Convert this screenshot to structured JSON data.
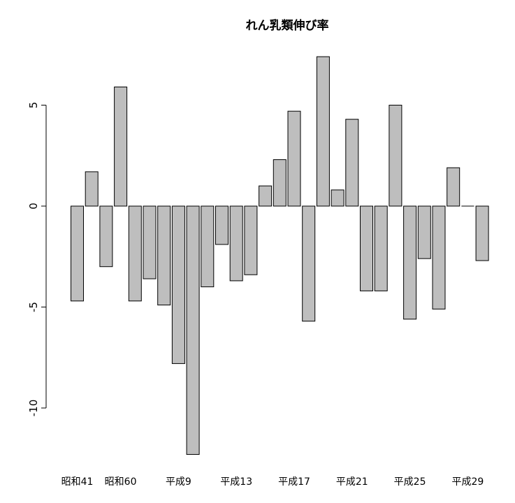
{
  "chart_data": {
    "type": "bar",
    "title": "れん乳類伸び率",
    "xlabel": "",
    "ylabel": "",
    "ylim": [
      -12.3,
      7.5
    ],
    "yticks": [
      -10,
      -5,
      0,
      5
    ],
    "bar_color": "#bebebe",
    "categories": [
      "昭和41",
      "",
      "",
      "昭和60",
      "",
      "",
      "",
      "平成9",
      "",
      "",
      "",
      "平成13",
      "",
      "",
      "",
      "平成17",
      "",
      "",
      "",
      "平成21",
      "",
      "",
      "",
      "平成25",
      "",
      "",
      "",
      "平成29",
      ""
    ],
    "values": [
      -4.7,
      1.7,
      -3.0,
      5.9,
      -4.7,
      -3.6,
      -4.9,
      -7.8,
      -12.3,
      -4.0,
      -1.9,
      -3.7,
      -3.4,
      1.0,
      2.3,
      4.7,
      -5.7,
      7.4,
      0.8,
      4.3,
      -4.2,
      -4.2,
      5.0,
      -5.6,
      -2.6,
      -5.1,
      1.9,
      0.0,
      -2.7
    ]
  }
}
